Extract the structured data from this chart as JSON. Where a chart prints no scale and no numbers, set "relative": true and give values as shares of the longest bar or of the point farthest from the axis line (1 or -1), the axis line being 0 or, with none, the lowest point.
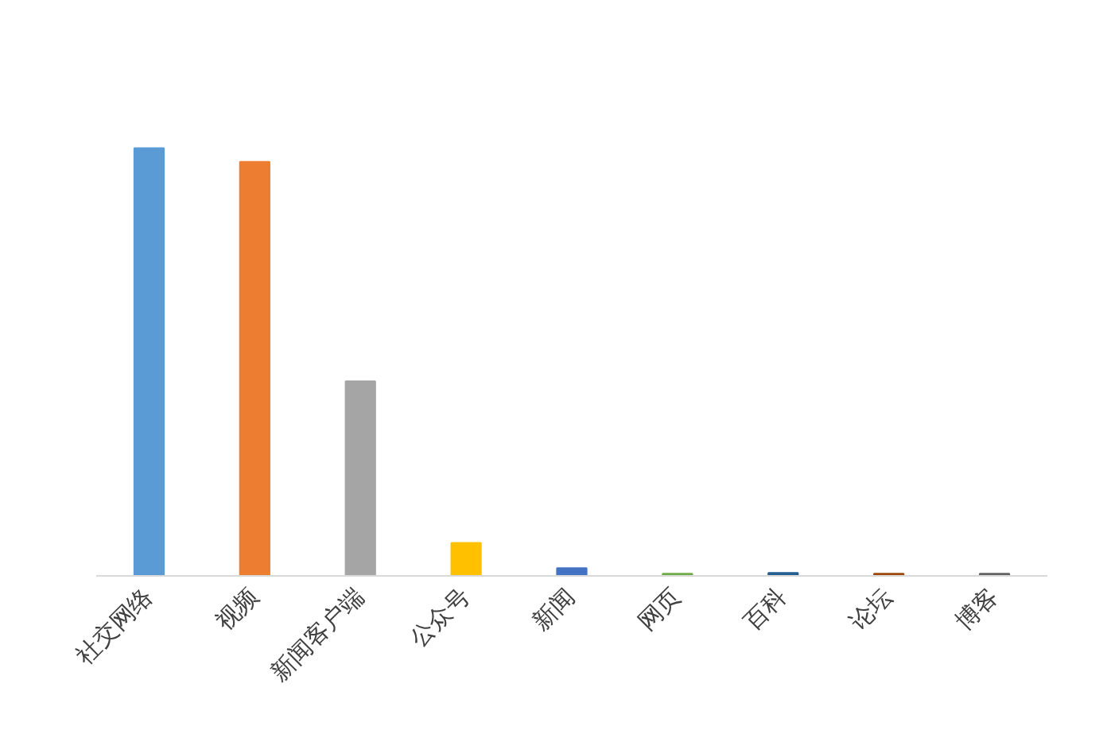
{
  "chart_data": {
    "type": "bar",
    "relative": true,
    "categories": [
      "社交网络",
      "视频",
      "新闻客户端",
      "公众号",
      "新闻",
      "网页",
      "百科",
      "论坛",
      "博客"
    ],
    "values": [
      1,
      0.968,
      0.455,
      0.077,
      0.018,
      0.005,
      0.007,
      0.005,
      0.005
    ],
    "colors": [
      "#5b9bd5",
      "#ed7d31",
      "#a5a5a5",
      "#ffc000",
      "#4472c4",
      "#70ad47",
      "#255e91",
      "#9e480e",
      "#636363"
    ]
  }
}
